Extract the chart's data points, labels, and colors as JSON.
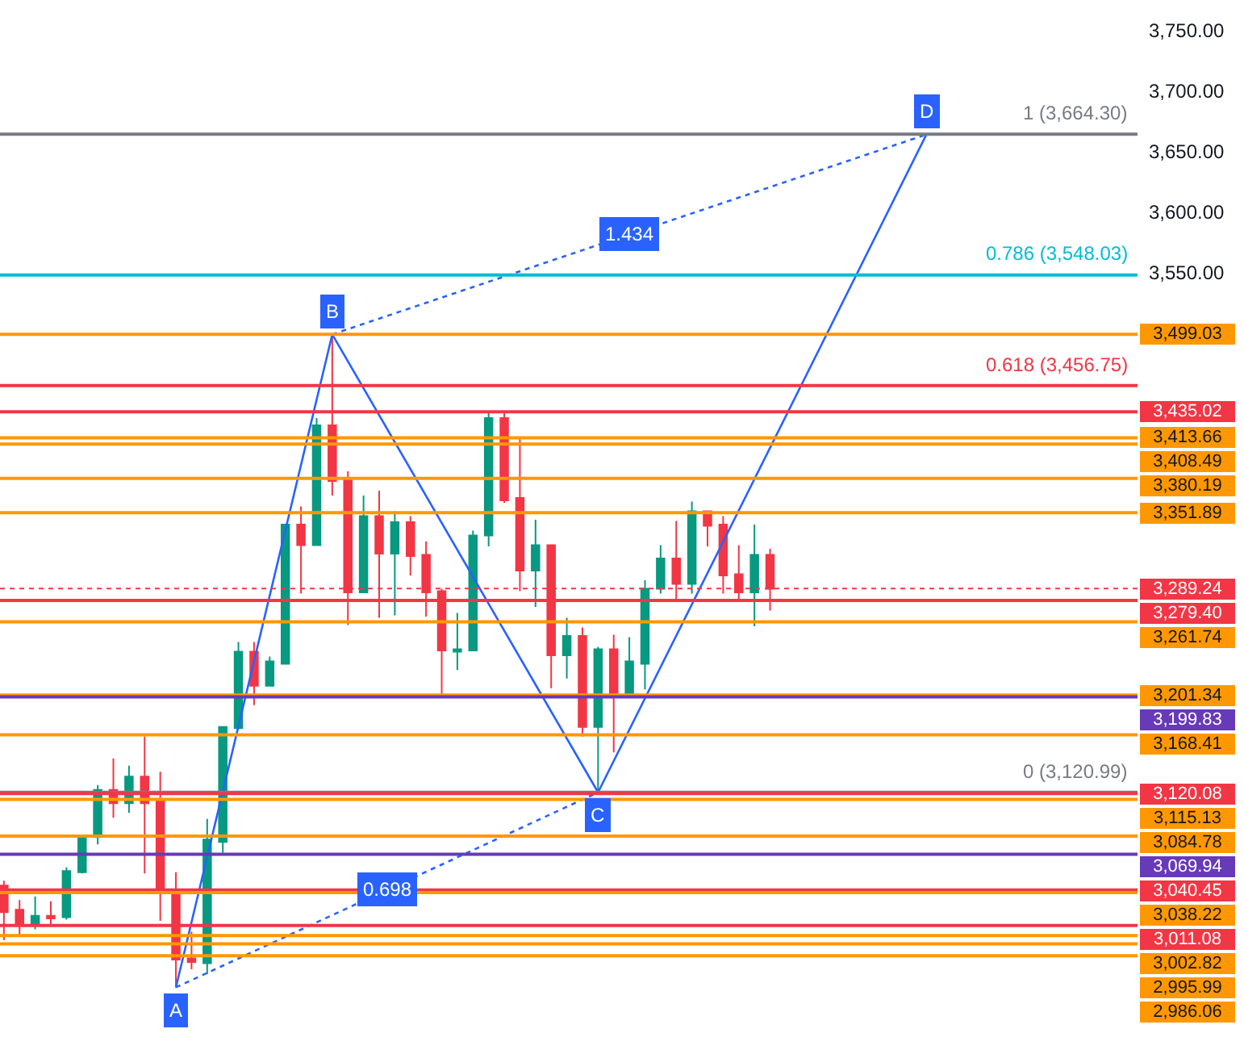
{
  "chart_data": {
    "type": "candlestick",
    "tick_labels": "y",
    "categories": [
      null,
      null,
      null,
      null,
      null,
      null,
      null,
      null,
      null,
      null,
      null,
      null,
      null,
      null,
      null,
      null,
      null,
      null,
      null,
      null,
      null,
      null,
      null,
      null,
      null,
      null,
      null,
      null,
      null,
      null,
      null,
      null,
      null,
      null,
      null,
      null,
      null,
      null,
      null,
      null,
      null,
      null,
      null,
      null,
      null,
      null,
      null,
      null,
      null,
      null,
      null,
      null,
      null,
      null,
      null,
      null,
      null,
      null,
      null,
      null,
      null,
      null,
      null,
      null,
      null,
      null,
      null,
      null,
      null,
      null,
      null,
      null,
      null
    ],
    "ylim": [
      2905,
      3775
    ],
    "yticks": [
      {
        "value": 3550,
        "label": "3,550.00"
      },
      {
        "value": 3600,
        "label": "3,600.00"
      },
      {
        "value": 3650,
        "label": "3,650.00"
      },
      {
        "value": 3700,
        "label": "3,700.00"
      },
      {
        "value": 3750,
        "label": "3,750.00"
      }
    ],
    "ohlc": [
      [
        3044,
        3048,
        2999,
        3022
      ],
      [
        3024,
        3032,
        3002,
        3011
      ],
      [
        3011,
        3035,
        3008,
        3019
      ],
      [
        3019,
        3031,
        3011,
        3017
      ],
      [
        3018,
        3059,
        3016,
        3056
      ],
      [
        3055,
        3086,
        3054,
        3084
      ],
      [
        3084,
        3127,
        3078,
        3123
      ],
      [
        3123,
        3149,
        3100,
        3112
      ],
      [
        3112,
        3143,
        3104,
        3134
      ],
      [
        3134,
        3167,
        3054,
        3112
      ],
      [
        3114,
        3138,
        3015,
        3038
      ],
      [
        3039,
        3055,
        2960,
        2983
      ],
      [
        2984,
        3006,
        2975,
        2981
      ],
      [
        2980,
        3099,
        2971,
        3082
      ],
      [
        3080,
        3175,
        3071,
        3175
      ],
      [
        3174,
        3245,
        3173,
        3237
      ],
      [
        3237,
        3245,
        3193,
        3209
      ],
      [
        3209,
        3233,
        3209,
        3229
      ],
      [
        3227,
        3342,
        3227,
        3342
      ],
      [
        3342,
        3357,
        3285,
        3325
      ],
      [
        3325,
        3430,
        3325,
        3424
      ],
      [
        3424,
        3499,
        3366,
        3378
      ],
      [
        3380,
        3386,
        3259,
        3286
      ],
      [
        3286,
        3366,
        3286,
        3349
      ],
      [
        3349,
        3370,
        3265,
        3318
      ],
      [
        3318,
        3353,
        3267,
        3344
      ],
      [
        3344,
        3349,
        3300,
        3316
      ],
      [
        3317,
        3328,
        3266,
        3286
      ],
      [
        3287,
        3289,
        3202,
        3238
      ],
      [
        3237,
        3269,
        3222,
        3239
      ],
      [
        3238,
        3337,
        3238,
        3333
      ],
      [
        3333,
        3434,
        3324,
        3430
      ],
      [
        3430,
        3434,
        3360,
        3362
      ],
      [
        3364,
        3414,
        3287,
        3304
      ],
      [
        3304,
        3346,
        3274,
        3325
      ],
      [
        3325,
        3325,
        3207,
        3234
      ],
      [
        3234,
        3265,
        3215,
        3250
      ],
      [
        3250,
        3257,
        3167,
        3175
      ],
      [
        3175,
        3241,
        3121,
        3239
      ],
      [
        3239,
        3251,
        3154,
        3202
      ],
      [
        3202,
        3249,
        3202,
        3229
      ],
      [
        3227,
        3296,
        3206,
        3289
      ],
      [
        3289,
        3325,
        3285,
        3314
      ],
      [
        3314,
        3345,
        3279,
        3293
      ],
      [
        3293,
        3361,
        3285,
        3353
      ],
      [
        3353,
        3353,
        3324,
        3341
      ],
      [
        3342,
        3349,
        3285,
        3300
      ],
      [
        3301,
        3325,
        3279,
        3286
      ],
      [
        3286,
        3342,
        3258,
        3317
      ],
      [
        3317,
        3322,
        3271,
        3289
      ],
      null,
      null,
      null,
      null,
      null,
      null,
      null,
      null,
      null,
      null,
      null,
      null,
      null,
      null,
      null,
      null,
      null,
      null,
      null,
      null,
      null,
      null,
      null
    ],
    "colors": [
      "#f23645",
      "#f23645",
      "#089981",
      "#f23645",
      "#089981",
      "#089981",
      "#089981",
      "#f23645",
      "#089981",
      "#f23645",
      "#f23645",
      "#f23645",
      "#f23645",
      "#089981",
      "#089981",
      "#089981",
      "#f23645",
      "#089981",
      "#089981",
      "#f23645",
      "#089981",
      "#f23645",
      "#f23645",
      "#089981",
      "#f23645",
      "#089981",
      "#f23645",
      "#f23645",
      "#f23645",
      "#089981",
      "#089981",
      "#089981",
      "#f23645",
      "#f23645",
      "#089981",
      "#f23645",
      "#089981",
      "#f23645",
      "#089981",
      "#f23645",
      "#089981",
      "#089981",
      "#089981",
      "#f23645",
      "#089981",
      "#f23645",
      "#f23645",
      "#f23645",
      "#089981",
      "#f23645",
      null,
      null,
      null,
      null,
      null,
      null,
      null,
      null,
      null,
      null,
      null,
      null,
      null,
      null,
      null,
      null,
      null,
      null,
      null,
      null,
      null,
      null,
      null
    ],
    "series": [
      {
        "type": "line",
        "color": "#2962ff",
        "line_style": "solid",
        "values": [
          null,
          null,
          null,
          null,
          null,
          null,
          null,
          null,
          null,
          null,
          null,
          2960,
          null,
          null,
          null,
          null,
          null,
          null,
          null,
          null,
          null,
          3499,
          null,
          null,
          null,
          null,
          null,
          null,
          null,
          null,
          null,
          null,
          null,
          null,
          null,
          null,
          null,
          null,
          3121,
          null,
          null,
          null,
          null,
          null,
          null,
          null,
          null,
          null,
          null,
          null,
          null,
          null,
          null,
          null,
          null,
          null,
          null,
          null,
          null,
          3664,
          null,
          null,
          null,
          null,
          null,
          null,
          null,
          null,
          null,
          null,
          null,
          null,
          null
        ],
        "value_labels": [
          null,
          null,
          null,
          null,
          null,
          null,
          null,
          null,
          null,
          null,
          null,
          "A",
          null,
          null,
          null,
          null,
          null,
          null,
          null,
          null,
          null,
          "B",
          null,
          null,
          null,
          null,
          null,
          null,
          null,
          null,
          null,
          null,
          null,
          null,
          null,
          null,
          null,
          null,
          "C",
          null,
          null,
          null,
          null,
          null,
          null,
          null,
          null,
          null,
          null,
          null,
          null,
          null,
          null,
          null,
          null,
          null,
          null,
          null,
          null,
          "D",
          null,
          null,
          null,
          null,
          null,
          null,
          null,
          null,
          null,
          null,
          null,
          null,
          null
        ]
      },
      {
        "type": "line",
        "name": "0.698",
        "color": "#2962ff",
        "line_style": "dotted",
        "values": [
          null,
          null,
          null,
          null,
          null,
          null,
          null,
          null,
          null,
          null,
          null,
          2960,
          null,
          null,
          null,
          null,
          null,
          null,
          null,
          null,
          null,
          null,
          null,
          null,
          null,
          null,
          null,
          null,
          null,
          null,
          null,
          null,
          null,
          null,
          null,
          null,
          null,
          null,
          3121,
          null,
          null,
          null,
          null,
          null,
          null,
          null,
          null,
          null,
          null,
          null,
          null,
          null,
          null,
          null,
          null,
          null,
          null,
          null,
          null,
          null,
          null,
          null,
          null,
          null,
          null,
          null,
          null,
          null,
          null,
          null,
          null,
          null,
          null
        ]
      },
      {
        "type": "line",
        "name": "1.434",
        "color": "#2962ff",
        "line_style": "dotted",
        "values": [
          null,
          null,
          null,
          null,
          null,
          null,
          null,
          null,
          null,
          null,
          null,
          null,
          null,
          null,
          null,
          null,
          null,
          null,
          null,
          null,
          null,
          3499,
          null,
          null,
          null,
          null,
          null,
          null,
          null,
          null,
          null,
          null,
          null,
          null,
          null,
          null,
          null,
          null,
          null,
          null,
          null,
          null,
          null,
          null,
          null,
          null,
          null,
          null,
          null,
          null,
          null,
          null,
          null,
          null,
          null,
          null,
          null,
          null,
          null,
          3664,
          null,
          null,
          null,
          null,
          null,
          null,
          null,
          null,
          null,
          null,
          null,
          null,
          null
        ]
      }
    ],
    "ref_lines": [
      {
        "axis": "y",
        "value": 3664.3,
        "color": "#787b86",
        "line_style": "solid"
      },
      {
        "axis": "y",
        "value": 3548.03,
        "color": "#00bcd4",
        "line_style": "solid"
      },
      {
        "axis": "y",
        "value": 3456.75,
        "color": "#f23645",
        "line_style": "solid"
      },
      {
        "axis": "y",
        "value": 3120.99,
        "color": "#787b86",
        "line_style": "solid"
      },
      {
        "axis": "y",
        "value": 3499.03,
        "label": "3,499.03",
        "color": "#ff9800",
        "line_style": "solid"
      },
      {
        "axis": "y",
        "value": 3435.02,
        "label": "3,435.02",
        "color": "#f23645",
        "line_style": "solid"
      },
      {
        "axis": "y",
        "value": 3413.66,
        "label": "3,413.66",
        "color": "#ff9800",
        "line_style": "solid"
      },
      {
        "axis": "y",
        "value": 3408.49,
        "label": "3,408.49",
        "color": "#ff9800",
        "line_style": "solid"
      },
      {
        "axis": "y",
        "value": 3380.19,
        "label": "3,380.19",
        "color": "#ff9800",
        "line_style": "solid"
      },
      {
        "axis": "y",
        "value": 3351.89,
        "label": "3,351.89",
        "color": "#ff9800",
        "line_style": "solid"
      },
      {
        "axis": "y",
        "value": 3289.24,
        "label": "3,289.24",
        "color": "#f23645",
        "line_style": "dotted"
      },
      {
        "axis": "y",
        "value": 3279.4,
        "label": "3,279.40",
        "color": "#f23645",
        "line_style": "solid"
      },
      {
        "axis": "y",
        "value": 3261.74,
        "label": "3,261.74",
        "color": "#ff9800",
        "line_style": "solid"
      },
      {
        "axis": "y",
        "value": 3201.34,
        "label": "3,201.34",
        "color": "#ff9800",
        "line_style": "solid"
      },
      {
        "axis": "y",
        "value": 3199.83,
        "label": "3,199.83",
        "color": "#673ab7",
        "line_style": "solid"
      },
      {
        "axis": "y",
        "value": 3168.41,
        "label": "3,168.41",
        "color": "#ff9800",
        "line_style": "solid"
      },
      {
        "axis": "y",
        "value": 3120.08,
        "label": "3,120.08",
        "color": "#f23645",
        "line_style": "solid"
      },
      {
        "axis": "y",
        "value": 3115.13,
        "label": "3,115.13",
        "color": "#ff9800",
        "line_style": "solid"
      },
      {
        "axis": "y",
        "value": 3084.78,
        "label": "3,084.78",
        "color": "#ff9800",
        "line_style": "solid"
      },
      {
        "axis": "y",
        "value": 3069.94,
        "label": "3,069.94",
        "color": "#673ab7",
        "line_style": "solid"
      },
      {
        "axis": "y",
        "value": 3040.45,
        "label": "3,040.45",
        "color": "#f23645",
        "line_style": "solid"
      },
      {
        "axis": "y",
        "value": 3038.22,
        "label": "3,038.22",
        "color": "#ff9800",
        "line_style": "solid"
      },
      {
        "axis": "y",
        "value": 3011.08,
        "label": "3,011.08",
        "color": "#f23645",
        "line_style": "solid"
      },
      {
        "axis": "y",
        "value": 3002.82,
        "label": "3,002.82",
        "color": "#ff9800",
        "line_style": "solid"
      },
      {
        "axis": "y",
        "value": 2995.99,
        "label": "2,995.99",
        "color": "#ff9800",
        "line_style": "solid"
      },
      {
        "axis": "y",
        "value": 2986.06,
        "label": "2,986.06",
        "color": "#ff9800",
        "line_style": "solid"
      }
    ],
    "annotations": [
      {
        "text": "1 (3,664.30)",
        "y": 3664.3
      },
      {
        "text": "0.786 (3,548.03)",
        "y": 3548.03
      },
      {
        "text": "0.618 (3,456.75)",
        "y": 3456.75
      },
      {
        "text": "0 (3,120.99)",
        "y": 3120.99
      }
    ]
  }
}
